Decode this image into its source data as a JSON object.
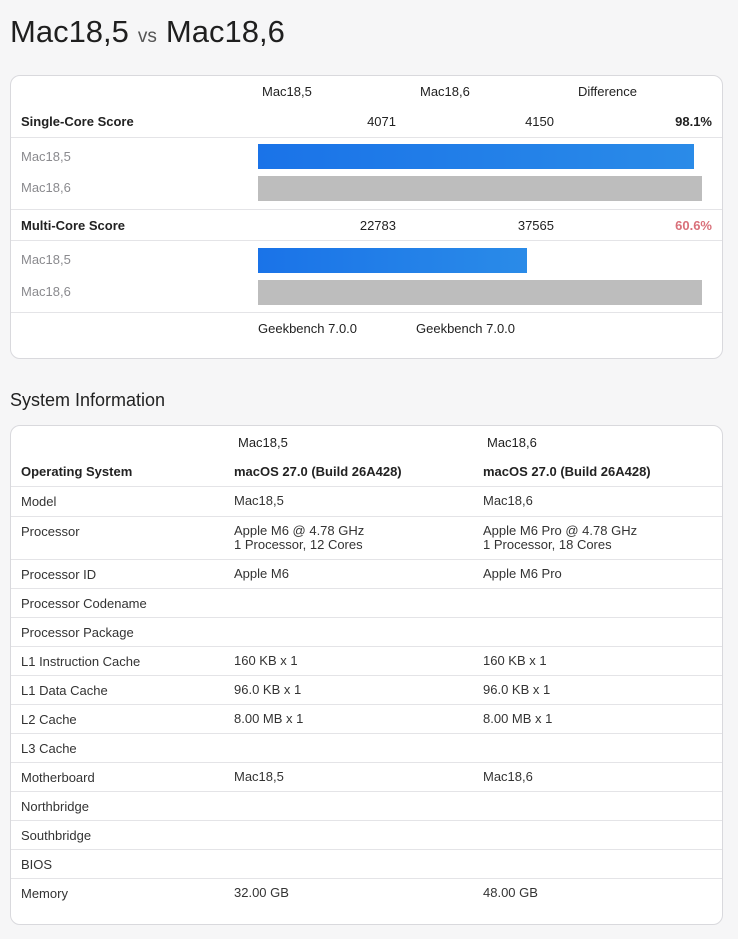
{
  "title": {
    "left": "Mac18,5",
    "vs": "vs",
    "right": "Mac18,6"
  },
  "benchmark": {
    "headers": {
      "col1": "Mac18,5",
      "col2": "Mac18,6",
      "diff": "Difference"
    },
    "single": {
      "label": "Single-Core Score",
      "score1": "4071",
      "score2": "4150",
      "diff": "98.1%",
      "bars": [
        {
          "label": "Mac18,5",
          "fraction": 0.981
        },
        {
          "label": "Mac18,6",
          "fraction": 1.0
        }
      ]
    },
    "multi": {
      "label": "Multi-Core Score",
      "score1": "22783",
      "score2": "37565",
      "diff": "60.6%",
      "diff_color": "#d9707a",
      "bars": [
        {
          "label": "Mac18,5",
          "fraction": 0.606
        },
        {
          "label": "Mac18,6",
          "fraction": 1.0
        }
      ]
    },
    "versions": {
      "v1": "Geekbench 7.0.0",
      "v2": "Geekbench 7.0.0"
    },
    "colors": {
      "bar_primary": "#1a73e8",
      "bar_secondary": "#bdbdbd"
    }
  },
  "system": {
    "title": "System Information",
    "headers": {
      "col1": "Mac18,5",
      "col2": "Mac18,6"
    },
    "os": {
      "label": "Operating System",
      "v1": "macOS 27.0 (Build 26A428)",
      "v2": "macOS 27.0 (Build 26A428)"
    },
    "rows": [
      {
        "label": "Model",
        "v1": "Mac18,5",
        "v2": "Mac18,6"
      },
      {
        "label": "Processor",
        "v1": "Apple M6 @ 4.78 GHz",
        "v1b": "1 Processor, 12 Cores",
        "v2": "Apple M6 Pro @ 4.78 GHz",
        "v2b": "1 Processor, 18 Cores"
      },
      {
        "label": "Processor ID",
        "v1": "Apple M6",
        "v2": "Apple M6 Pro"
      },
      {
        "label": "Processor Codename",
        "v1": "",
        "v2": ""
      },
      {
        "label": "Processor Package",
        "v1": "",
        "v2": ""
      },
      {
        "label": "L1 Instruction Cache",
        "v1": "160 KB x 1",
        "v2": "160 KB x 1"
      },
      {
        "label": "L1 Data Cache",
        "v1": "96.0 KB x 1",
        "v2": "96.0 KB x 1"
      },
      {
        "label": "L2 Cache",
        "v1": "8.00 MB x 1",
        "v2": "8.00 MB x 1"
      },
      {
        "label": "L3 Cache",
        "v1": "",
        "v2": ""
      },
      {
        "label": "Motherboard",
        "v1": "Mac18,5",
        "v2": "Mac18,6"
      },
      {
        "label": "Northbridge",
        "v1": "",
        "v2": ""
      },
      {
        "label": "Southbridge",
        "v1": "",
        "v2": ""
      },
      {
        "label": "BIOS",
        "v1": "",
        "v2": ""
      },
      {
        "label": "Memory",
        "v1": "32.00 GB",
        "v2": "48.00 GB"
      }
    ]
  }
}
